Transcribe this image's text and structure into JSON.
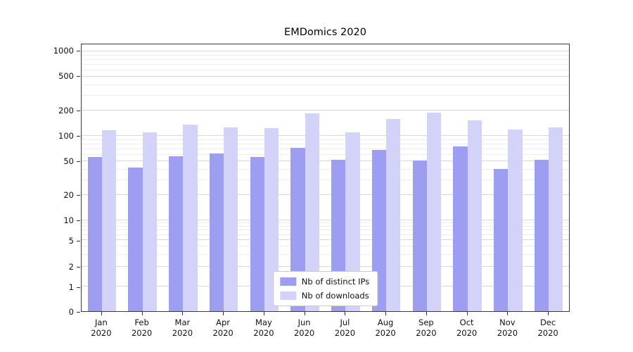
{
  "chart_data": {
    "type": "bar",
    "title": "EMDomics 2020",
    "x_tick_year": "2020",
    "categories": [
      "Jan",
      "Feb",
      "Mar",
      "Apr",
      "May",
      "Jun",
      "Jul",
      "Aug",
      "Sep",
      "Oct",
      "Nov",
      "Dec"
    ],
    "series": [
      {
        "name": "Nb of distinct IPs",
        "color": "#9d9df1",
        "values": [
          57,
          42,
          58,
          62,
          57,
          72,
          52,
          68,
          51,
          75,
          41,
          52
        ]
      },
      {
        "name": "Nb of downloads",
        "color": "#d3d3fa",
        "values": [
          118,
          110,
          138,
          126,
          124,
          185,
          110,
          160,
          190,
          152,
          120,
          127
        ]
      }
    ],
    "yscale": "symlog",
    "yticks": [
      0,
      1,
      2,
      5,
      10,
      20,
      50,
      100,
      200,
      500,
      1000
    ],
    "ylim": [
      0,
      1200
    ],
    "grid": "horizontal-major-and-minor",
    "legend_position": "lower-center"
  }
}
